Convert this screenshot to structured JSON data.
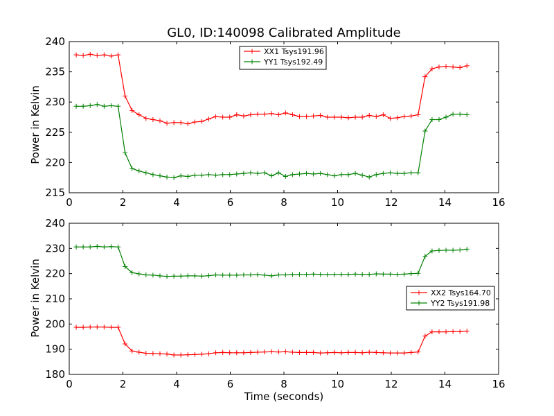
{
  "chart_data": [
    {
      "type": "line",
      "title": "GL0, ID:140098 Calibrated Amplitude",
      "xlabel": "",
      "ylabel": "Power in Kelvin",
      "xlim": [
        0,
        16
      ],
      "ylim": [
        215,
        240
      ],
      "xticks": [
        0,
        2,
        4,
        6,
        8,
        10,
        12,
        14,
        16
      ],
      "yticks": [
        215,
        220,
        225,
        230,
        235,
        240
      ],
      "legend": "top-center",
      "x": [
        0.26,
        0.52,
        0.78,
        1.04,
        1.3,
        1.56,
        1.82,
        2.08,
        2.34,
        2.6,
        2.86,
        3.12,
        3.38,
        3.64,
        3.9,
        4.16,
        4.42,
        4.68,
        4.94,
        5.2,
        5.46,
        5.72,
        5.98,
        6.24,
        6.5,
        6.76,
        7.02,
        7.28,
        7.54,
        7.8,
        8.06,
        8.32,
        8.58,
        8.84,
        9.1,
        9.36,
        9.62,
        9.88,
        10.14,
        10.4,
        10.66,
        10.92,
        11.18,
        11.44,
        11.7,
        11.96,
        12.22,
        12.48,
        12.74,
        13.0,
        13.26,
        13.52,
        13.78,
        14.04,
        14.3,
        14.56,
        14.82
      ],
      "series": [
        {
          "name": "XX1 Tsys191.96",
          "color": "#ff0000",
          "values": [
            237.8,
            237.7,
            237.9,
            237.7,
            237.8,
            237.6,
            237.8,
            231.0,
            228.6,
            227.9,
            227.3,
            227.1,
            226.9,
            226.5,
            226.6,
            226.6,
            226.4,
            226.7,
            226.8,
            227.2,
            227.6,
            227.5,
            227.5,
            227.9,
            227.7,
            227.9,
            228.0,
            228.0,
            228.1,
            227.9,
            228.2,
            227.9,
            227.6,
            227.6,
            227.7,
            227.8,
            227.5,
            227.5,
            227.5,
            227.4,
            227.5,
            227.5,
            227.8,
            227.6,
            227.9,
            227.3,
            227.4,
            227.6,
            227.7,
            227.9,
            234.2,
            235.5,
            235.8,
            235.9,
            235.8,
            235.7,
            236.0
          ]
        },
        {
          "name": "YY1 Tsys192.49",
          "color": "#008000",
          "values": [
            229.3,
            229.3,
            229.4,
            229.6,
            229.3,
            229.4,
            229.3,
            221.6,
            219.0,
            218.6,
            218.3,
            218.0,
            217.8,
            217.6,
            217.5,
            217.8,
            217.7,
            217.9,
            217.9,
            218.0,
            217.9,
            218.0,
            218.0,
            218.1,
            218.2,
            218.3,
            218.2,
            218.3,
            217.8,
            218.3,
            217.7,
            218.0,
            218.1,
            218.2,
            218.1,
            218.2,
            218.0,
            217.8,
            218.0,
            218.0,
            218.2,
            217.9,
            217.6,
            218.0,
            218.2,
            218.3,
            218.2,
            218.2,
            218.3,
            218.3,
            225.2,
            227.1,
            227.1,
            227.5,
            228.0,
            228.0,
            227.9
          ]
        }
      ]
    },
    {
      "type": "line",
      "title": "",
      "xlabel": "Time (seconds)",
      "ylabel": "Power in Kelvin",
      "xlim": [
        0,
        16
      ],
      "ylim": [
        180,
        240
      ],
      "xticks": [
        0,
        2,
        4,
        6,
        8,
        10,
        12,
        14,
        16
      ],
      "yticks": [
        180,
        190,
        200,
        210,
        220,
        230,
        240
      ],
      "legend": "right",
      "x": [
        0.26,
        0.52,
        0.78,
        1.04,
        1.3,
        1.56,
        1.82,
        2.08,
        2.34,
        2.6,
        2.86,
        3.12,
        3.38,
        3.64,
        3.9,
        4.16,
        4.42,
        4.68,
        4.94,
        5.2,
        5.46,
        5.72,
        5.98,
        6.24,
        6.5,
        6.76,
        7.02,
        7.28,
        7.54,
        7.8,
        8.06,
        8.32,
        8.58,
        8.84,
        9.1,
        9.36,
        9.62,
        9.88,
        10.14,
        10.4,
        10.66,
        10.92,
        11.18,
        11.44,
        11.7,
        11.96,
        12.22,
        12.48,
        12.74,
        13.0,
        13.26,
        13.52,
        13.78,
        14.04,
        14.3,
        14.56,
        14.82
      ],
      "series": [
        {
          "name": "XX2 Tsys164.70",
          "color": "#ff0000",
          "values": [
            198.7,
            198.7,
            198.8,
            198.8,
            198.8,
            198.7,
            198.7,
            192.1,
            189.3,
            188.8,
            188.4,
            188.3,
            188.2,
            188.1,
            187.7,
            187.7,
            187.8,
            187.9,
            188.0,
            188.2,
            188.6,
            188.7,
            188.6,
            188.6,
            188.6,
            188.7,
            188.8,
            188.9,
            189.0,
            188.9,
            189.0,
            188.8,
            188.7,
            188.7,
            188.7,
            188.5,
            188.6,
            188.7,
            188.6,
            188.7,
            188.7,
            188.6,
            188.8,
            188.7,
            188.6,
            188.5,
            188.5,
            188.5,
            188.7,
            188.9,
            195.2,
            196.9,
            196.9,
            196.9,
            197.0,
            197.0,
            197.2
          ]
        },
        {
          "name": "YY2 Tsys191.98",
          "color": "#008000",
          "values": [
            230.6,
            230.6,
            230.6,
            230.8,
            230.6,
            230.7,
            230.6,
            222.8,
            220.4,
            219.9,
            219.5,
            219.4,
            219.1,
            218.9,
            219.0,
            219.0,
            219.1,
            219.1,
            219.0,
            219.2,
            219.5,
            219.4,
            219.4,
            219.4,
            219.5,
            219.5,
            219.6,
            219.4,
            219.1,
            219.5,
            219.5,
            219.6,
            219.7,
            219.7,
            219.8,
            219.7,
            219.6,
            219.7,
            219.7,
            219.7,
            219.8,
            219.7,
            219.7,
            219.9,
            219.8,
            219.8,
            219.7,
            219.8,
            220.0,
            220.1,
            226.9,
            229.0,
            229.2,
            229.3,
            229.3,
            229.4,
            229.7
          ]
        }
      ]
    }
  ]
}
